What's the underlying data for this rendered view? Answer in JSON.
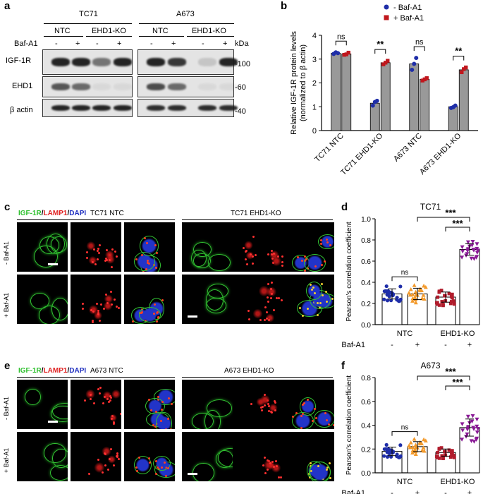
{
  "panels": {
    "a": "a",
    "b": "b",
    "c": "c",
    "d": "d",
    "e": "e",
    "f": "f"
  },
  "panel_a": {
    "cell_lines": [
      "TC71",
      "A673"
    ],
    "groups": [
      "NTC",
      "EHD1-KO",
      "NTC",
      "EHD1-KO"
    ],
    "baf_label": "Baf-A1",
    "baf_signs": [
      "-",
      "+",
      "-",
      "+",
      "-",
      "+",
      "-",
      "+"
    ],
    "kda_label": "kDa",
    "rows": [
      "IGF-1R",
      "EHD1",
      "β actin"
    ],
    "markers": [
      "-100",
      "-60",
      "-40"
    ],
    "band_intensity": {
      "IGF-1R": [
        0.95,
        0.95,
        0.55,
        0.95,
        0.95,
        0.85,
        0.15,
        0.95
      ],
      "EHD1": [
        0.7,
        0.6,
        0.05,
        0.05,
        0.75,
        0.6,
        0.05,
        0.05
      ],
      "β actin": [
        0.95,
        0.95,
        0.95,
        0.95,
        0.9,
        0.9,
        0.9,
        0.9
      ]
    }
  },
  "panel_c": {
    "stain_igf": "IGF-1R",
    "stain_lamp": "LAMP1",
    "stain_dapi": "DAPI",
    "sep": "/",
    "left_title": "TC71 NTC",
    "right_title": "TC71 EHD1-KO",
    "rows": [
      "- Baf-A1",
      "+ Baf-A1"
    ]
  },
  "panel_e": {
    "stain_igf": "IGF-1R",
    "stain_lamp": "LAMP1",
    "stain_dapi": "DAPI",
    "sep": "/",
    "left_title": "A673 NTC",
    "right_title": "A673 EHD1-KO",
    "rows": [
      "- Baf-A1",
      "+ Baf-A1"
    ]
  },
  "colors": {
    "blue": "#1f2ea8",
    "red": "#c0171d",
    "gray": "#999999",
    "orange": "#f39a2b",
    "purple": "#8a1a96",
    "darkred": "#b01c2c",
    "green": "#32c832"
  },
  "chart_data": [
    {
      "id": "b",
      "type": "bar",
      "ylabel": "Relative IGF-1R protein levels (normalized to β actin)",
      "ylabel_lines": [
        "Relative IGF-1R protein levels",
        "(normalized to β actin)"
      ],
      "categories": [
        "TC71 NTC",
        "TC71 EHD1-KO",
        "A673 NTC",
        "A673 EHD1-KO"
      ],
      "series": [
        {
          "name": "- Baf-A1",
          "values": [
            3.25,
            1.15,
            2.8,
            1.0
          ],
          "points": [
            [
              3.22,
              3.28,
              3.25
            ],
            [
              1.05,
              1.2,
              1.25
            ],
            [
              2.55,
              2.8,
              3.05
            ],
            [
              0.95,
              0.98,
              1.05
            ]
          ]
        },
        {
          "name": "+ Baf-A1",
          "values": [
            3.22,
            2.85,
            2.15,
            2.55
          ],
          "points": [
            [
              3.18,
              3.2,
              3.27
            ],
            [
              2.78,
              2.85,
              2.93
            ],
            [
              2.1,
              2.15,
              2.2
            ],
            [
              2.45,
              2.58,
              2.65
            ]
          ]
        }
      ],
      "significance": [
        "ns",
        "**",
        "ns",
        "**"
      ],
      "ylim": [
        0,
        4
      ],
      "yticks": [
        0,
        1,
        2,
        3,
        4
      ],
      "legend": "top-right"
    },
    {
      "id": "d",
      "type": "bar",
      "title": "TC71",
      "ylabel": "Pearson's correlation coefficient",
      "xgroups": [
        "NTC",
        "EHD1-KO"
      ],
      "xlabel_baf": "Baf-A1",
      "signs": [
        "-",
        "+",
        "-",
        "+"
      ],
      "values": [
        0.29,
        0.29,
        0.26,
        0.71
      ],
      "spread": [
        0.08,
        0.09,
        0.08,
        0.09
      ],
      "significance": [
        "ns",
        "***",
        "***"
      ],
      "ylim": [
        0,
        1.0
      ],
      "yticks": [
        0.0,
        0.2,
        0.4,
        0.6,
        0.8,
        1.0
      ]
    },
    {
      "id": "f",
      "type": "bar",
      "title": "A673",
      "ylabel": "Pearson's correlation coefficient",
      "xgroups": [
        "NTC",
        "EHD1-KO"
      ],
      "xlabel_baf": "Baf-A1",
      "signs": [
        "-",
        "+",
        "-",
        "+"
      ],
      "values": [
        0.18,
        0.22,
        0.17,
        0.38
      ],
      "spread": [
        0.06,
        0.07,
        0.05,
        0.12
      ],
      "significance": [
        "ns",
        "***",
        "***"
      ],
      "ylim": [
        0,
        0.8
      ],
      "yticks": [
        0.0,
        0.2,
        0.4,
        0.6,
        0.8
      ]
    }
  ]
}
